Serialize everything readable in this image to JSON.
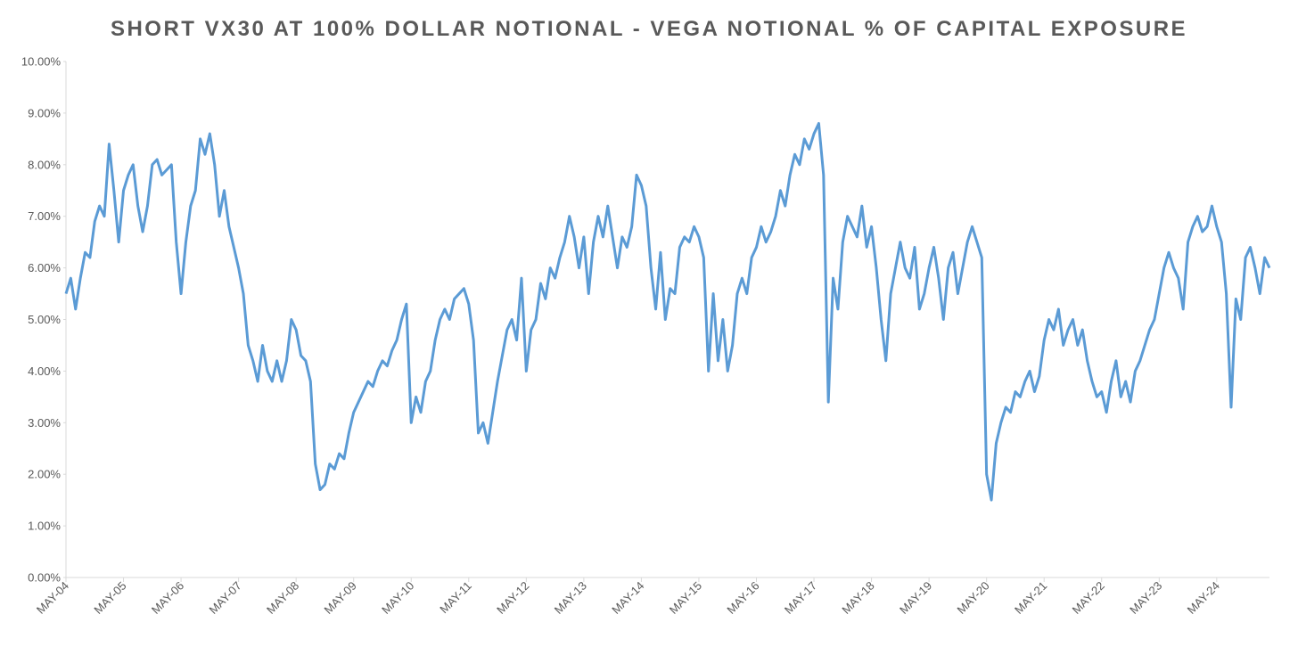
{
  "chart_data": {
    "type": "line",
    "title": "SHORT VX30 AT 100% DOLLAR NOTIONAL - VEGA NOTIONAL % OF CAPITAL EXPOSURE",
    "xlim": [
      "2004-05",
      "2025-04"
    ],
    "xticks": [
      {
        "value": "2004-05",
        "label": "MAY-04"
      },
      {
        "value": "2005-05",
        "label": "MAY-05"
      },
      {
        "value": "2006-05",
        "label": "MAY-06"
      },
      {
        "value": "2007-05",
        "label": "MAY-07"
      },
      {
        "value": "2008-05",
        "label": "MAY-08"
      },
      {
        "value": "2009-05",
        "label": "MAY-09"
      },
      {
        "value": "2010-05",
        "label": "MAY-10"
      },
      {
        "value": "2011-05",
        "label": "MAY-11"
      },
      {
        "value": "2012-05",
        "label": "MAY-12"
      },
      {
        "value": "2013-05",
        "label": "MAY-13"
      },
      {
        "value": "2014-05",
        "label": "MAY-14"
      },
      {
        "value": "2015-05",
        "label": "MAY-15"
      },
      {
        "value": "2016-05",
        "label": "MAY-16"
      },
      {
        "value": "2017-05",
        "label": "MAY-17"
      },
      {
        "value": "2018-05",
        "label": "MAY-18"
      },
      {
        "value": "2019-05",
        "label": "MAY-19"
      },
      {
        "value": "2020-05",
        "label": "MAY-20"
      },
      {
        "value": "2021-05",
        "label": "MAY-21"
      },
      {
        "value": "2022-05",
        "label": "MAY-22"
      },
      {
        "value": "2023-05",
        "label": "MAY-23"
      },
      {
        "value": "2024-05",
        "label": "MAY-24"
      }
    ],
    "ylim": [
      0,
      10
    ],
    "yticks": [
      {
        "value": 0,
        "label": "0.00%"
      },
      {
        "value": 1,
        "label": "1.00%"
      },
      {
        "value": 2,
        "label": "2.00%"
      },
      {
        "value": 3,
        "label": "3.00%"
      },
      {
        "value": 4,
        "label": "4.00%"
      },
      {
        "value": 5,
        "label": "5.00%"
      },
      {
        "value": 6,
        "label": "6.00%"
      },
      {
        "value": 7,
        "label": "7.00%"
      },
      {
        "value": 8,
        "label": "8.00%"
      },
      {
        "value": 9,
        "label": "9.00%"
      },
      {
        "value": 10,
        "label": "10.00%"
      }
    ],
    "grid": false,
    "color": "#5b9bd5",
    "x": [
      "2004-05",
      "2004-06",
      "2004-07",
      "2004-08",
      "2004-09",
      "2004-10",
      "2004-11",
      "2004-12",
      "2005-01",
      "2005-02",
      "2005-03",
      "2005-04",
      "2005-05",
      "2005-06",
      "2005-07",
      "2005-08",
      "2005-09",
      "2005-10",
      "2005-11",
      "2005-12",
      "2006-01",
      "2006-02",
      "2006-03",
      "2006-04",
      "2006-05",
      "2006-06",
      "2006-07",
      "2006-08",
      "2006-09",
      "2006-10",
      "2006-11",
      "2006-12",
      "2007-01",
      "2007-02",
      "2007-03",
      "2007-04",
      "2007-05",
      "2007-06",
      "2007-07",
      "2007-08",
      "2007-09",
      "2007-10",
      "2007-11",
      "2007-12",
      "2008-01",
      "2008-02",
      "2008-03",
      "2008-04",
      "2008-05",
      "2008-06",
      "2008-07",
      "2008-08",
      "2008-09",
      "2008-10",
      "2008-11",
      "2008-12",
      "2009-01",
      "2009-02",
      "2009-03",
      "2009-04",
      "2009-05",
      "2009-06",
      "2009-07",
      "2009-08",
      "2009-09",
      "2009-10",
      "2009-11",
      "2009-12",
      "2010-01",
      "2010-02",
      "2010-03",
      "2010-04",
      "2010-05",
      "2010-06",
      "2010-07",
      "2010-08",
      "2010-09",
      "2010-10",
      "2010-11",
      "2010-12",
      "2011-01",
      "2011-02",
      "2011-03",
      "2011-04",
      "2011-05",
      "2011-06",
      "2011-07",
      "2011-08",
      "2011-09",
      "2011-10",
      "2011-11",
      "2011-12",
      "2012-01",
      "2012-02",
      "2012-03",
      "2012-04",
      "2012-05",
      "2012-06",
      "2012-07",
      "2012-08",
      "2012-09",
      "2012-10",
      "2012-11",
      "2012-12",
      "2013-01",
      "2013-02",
      "2013-03",
      "2013-04",
      "2013-05",
      "2013-06",
      "2013-07",
      "2013-08",
      "2013-09",
      "2013-10",
      "2013-11",
      "2013-12",
      "2014-01",
      "2014-02",
      "2014-03",
      "2014-04",
      "2014-05",
      "2014-06",
      "2014-07",
      "2014-08",
      "2014-09",
      "2014-10",
      "2014-11",
      "2014-12",
      "2015-01",
      "2015-02",
      "2015-03",
      "2015-04",
      "2015-05",
      "2015-06",
      "2015-07",
      "2015-08",
      "2015-09",
      "2015-10",
      "2015-11",
      "2015-12",
      "2016-01",
      "2016-02",
      "2016-03",
      "2016-04",
      "2016-05",
      "2016-06",
      "2016-07",
      "2016-08",
      "2016-09",
      "2016-10",
      "2016-11",
      "2016-12",
      "2017-01",
      "2017-02",
      "2017-03",
      "2017-04",
      "2017-05",
      "2017-06",
      "2017-07",
      "2017-08",
      "2017-09",
      "2017-10",
      "2017-11",
      "2017-12",
      "2018-01",
      "2018-02",
      "2018-03",
      "2018-04",
      "2018-05",
      "2018-06",
      "2018-07",
      "2018-08",
      "2018-09",
      "2018-10",
      "2018-11",
      "2018-12",
      "2019-01",
      "2019-02",
      "2019-03",
      "2019-04",
      "2019-05",
      "2019-06",
      "2019-07",
      "2019-08",
      "2019-09",
      "2019-10",
      "2019-11",
      "2019-12",
      "2020-01",
      "2020-02",
      "2020-03",
      "2020-04",
      "2020-05",
      "2020-06",
      "2020-07",
      "2020-08",
      "2020-09",
      "2020-10",
      "2020-11",
      "2020-12",
      "2021-01",
      "2021-02",
      "2021-03",
      "2021-04",
      "2021-05",
      "2021-06",
      "2021-07",
      "2021-08",
      "2021-09",
      "2021-10",
      "2021-11",
      "2021-12",
      "2022-01",
      "2022-02",
      "2022-03",
      "2022-04",
      "2022-05",
      "2022-06",
      "2022-07",
      "2022-08",
      "2022-09",
      "2022-10",
      "2022-11",
      "2022-12",
      "2023-01",
      "2023-02",
      "2023-03",
      "2023-04",
      "2023-05",
      "2023-06",
      "2023-07",
      "2023-08",
      "2023-09",
      "2023-10",
      "2023-11",
      "2023-12",
      "2024-01",
      "2024-02",
      "2024-03",
      "2024-04",
      "2024-05",
      "2024-06",
      "2024-07",
      "2024-08",
      "2024-09",
      "2024-10",
      "2024-11",
      "2024-12",
      "2025-01",
      "2025-02",
      "2025-03",
      "2025-04"
    ],
    "values": [
      5.5,
      5.8,
      5.2,
      5.8,
      6.3,
      6.2,
      6.9,
      7.2,
      7.0,
      8.4,
      7.5,
      6.5,
      7.5,
      7.8,
      8.0,
      7.2,
      6.7,
      7.2,
      8.0,
      8.1,
      7.8,
      7.9,
      8.0,
      6.5,
      5.5,
      6.5,
      7.2,
      7.5,
      8.5,
      8.2,
      8.6,
      8.0,
      7.0,
      7.5,
      6.8,
      6.4,
      6.0,
      5.5,
      4.5,
      4.2,
      3.8,
      4.5,
      4.0,
      3.8,
      4.2,
      3.8,
      4.2,
      5.0,
      4.8,
      4.3,
      4.2,
      3.8,
      2.2,
      1.7,
      1.8,
      2.2,
      2.1,
      2.4,
      2.3,
      2.8,
      3.2,
      3.4,
      3.6,
      3.8,
      3.7,
      4.0,
      4.2,
      4.1,
      4.4,
      4.6,
      5.0,
      5.3,
      3.0,
      3.5,
      3.2,
      3.8,
      4.0,
      4.6,
      5.0,
      5.2,
      5.0,
      5.4,
      5.5,
      5.6,
      5.3,
      4.6,
      2.8,
      3.0,
      2.6,
      3.2,
      3.8,
      4.3,
      4.8,
      5.0,
      4.6,
      5.8,
      4.0,
      4.8,
      5.0,
      5.7,
      5.4,
      6.0,
      5.8,
      6.2,
      6.5,
      7.0,
      6.6,
      6.0,
      6.6,
      5.5,
      6.5,
      7.0,
      6.6,
      7.2,
      6.6,
      6.0,
      6.6,
      6.4,
      6.8,
      7.8,
      7.6,
      7.2,
      6.0,
      5.2,
      6.3,
      5.0,
      5.6,
      5.5,
      6.4,
      6.6,
      6.5,
      6.8,
      6.6,
      6.2,
      4.0,
      5.5,
      4.2,
      5.0,
      4.0,
      4.5,
      5.5,
      5.8,
      5.5,
      6.2,
      6.4,
      6.8,
      6.5,
      6.7,
      7.0,
      7.5,
      7.2,
      7.8,
      8.2,
      8.0,
      8.5,
      8.3,
      8.6,
      8.8,
      7.8,
      3.4,
      5.8,
      5.2,
      6.5,
      7.0,
      6.8,
      6.6,
      7.2,
      6.4,
      6.8,
      6.0,
      5.0,
      4.2,
      5.5,
      6.0,
      6.5,
      6.0,
      5.8,
      6.4,
      5.2,
      5.5,
      6.0,
      6.4,
      5.8,
      5.0,
      6.0,
      6.3,
      5.5,
      6.0,
      6.5,
      6.8,
      6.5,
      6.2,
      2.0,
      1.5,
      2.6,
      3.0,
      3.3,
      3.2,
      3.6,
      3.5,
      3.8,
      4.0,
      3.6,
      3.9,
      4.6,
      5.0,
      4.8,
      5.2,
      4.5,
      4.8,
      5.0,
      4.5,
      4.8,
      4.2,
      3.8,
      3.5,
      3.6,
      3.2,
      3.8,
      4.2,
      3.5,
      3.8,
      3.4,
      4.0,
      4.2,
      4.5,
      4.8,
      5.0,
      5.5,
      6.0,
      6.3,
      6.0,
      5.8,
      5.2,
      6.5,
      6.8,
      7.0,
      6.7,
      6.8,
      7.2,
      6.8,
      6.5,
      5.5,
      3.3,
      5.4,
      5.0,
      6.2,
      6.4,
      6.0,
      5.5,
      6.2,
      6.0
    ]
  }
}
